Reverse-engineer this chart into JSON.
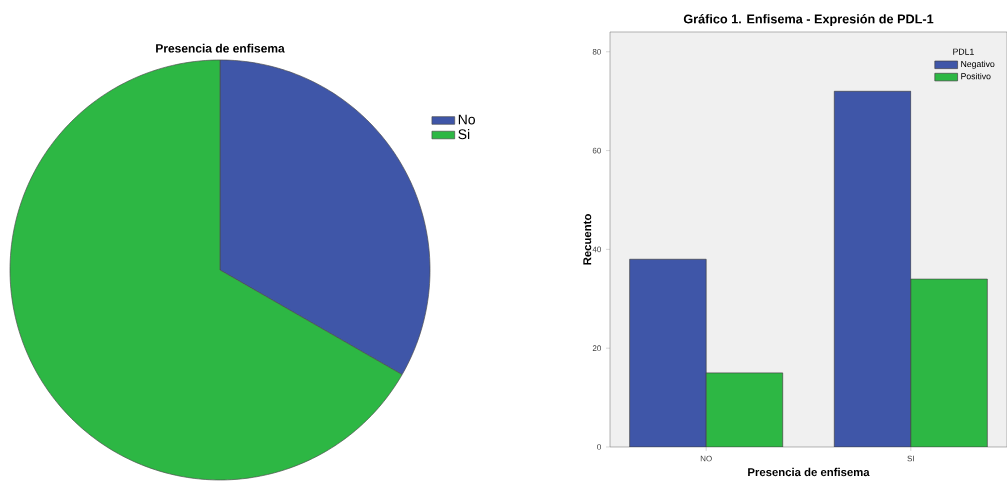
{
  "chart_data": [
    {
      "type": "pie",
      "title": "Presencia de enfisema",
      "categories": [
        "No",
        "Si"
      ],
      "values": [
        33.3,
        66.7
      ],
      "colors": [
        "#3f56a8",
        "#2db744"
      ],
      "legend": "right"
    },
    {
      "type": "bar",
      "title": "Gráfico 1. Enfisema - Expresión de PDL-1",
      "xlabel": "Presencia de enfisema",
      "ylabel": "Recuento",
      "legend_title": "PDL1",
      "categories": [
        "NO",
        "SI"
      ],
      "series": [
        {
          "name": "Negativo",
          "color": "#3f56a8",
          "values": [
            38,
            72
          ]
        },
        {
          "name": "Positivo",
          "color": "#2db744",
          "values": [
            15,
            34
          ]
        }
      ],
      "ylim": [
        0,
        84
      ],
      "yticks": [
        0,
        20,
        40,
        60,
        80
      ],
      "legend": "top right"
    }
  ]
}
